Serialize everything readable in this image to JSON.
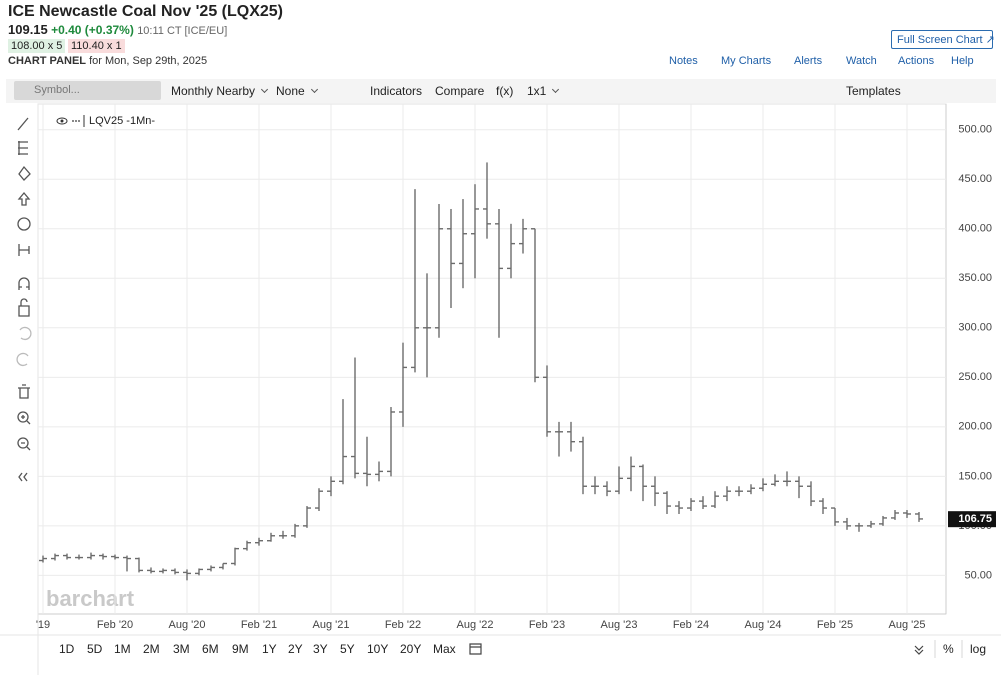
{
  "header": {
    "title": "ICE Newcastle Coal Nov '25 (LQX25)",
    "price": "109.15",
    "change": "+0.40 (+0.37%)",
    "time": "10:11 CT [ICE/EU]",
    "bid": "108.00 x 5",
    "ask": "110.40 x 1",
    "panel_label": "CHART PANEL",
    "panel_date": "for Mon, Sep 29th, 2025",
    "fullscreen": "Full Screen Chart"
  },
  "links": [
    "Notes",
    "My Charts",
    "Alerts",
    "Watch",
    "Actions",
    "Help"
  ],
  "toolbar": {
    "symbol_placeholder": "Symbol...",
    "items": [
      "Monthly Nearby",
      "None",
      "Indicators",
      "Compare",
      "f(x)",
      "1x1"
    ],
    "templates": "Templates"
  },
  "ranges": [
    "1D",
    "5D",
    "1M",
    "2M",
    "3M",
    "6M",
    "9M",
    "1Y",
    "2Y",
    "3Y",
    "5Y",
    "10Y",
    "20Y",
    "Max"
  ],
  "scale_options": [
    "%",
    "log"
  ],
  "watermark": "barchart",
  "chart_data": {
    "type": "ohlc",
    "categories": [
      "'19",
      null,
      null,
      null,
      null,
      null,
      "Feb '20",
      null,
      null,
      null,
      null,
      null,
      "Aug '20",
      null,
      null,
      null,
      null,
      null,
      "Feb '21",
      null,
      null,
      null,
      null,
      null,
      "Aug '21",
      null,
      null,
      null,
      null,
      null,
      "Feb '22",
      null,
      null,
      null,
      null,
      null,
      "Aug '22",
      null,
      null,
      null,
      null,
      null,
      "Feb '23",
      null,
      null,
      null,
      null,
      null,
      "Aug '23",
      null,
      null,
      null,
      null,
      null,
      "Feb '24",
      null,
      null,
      null,
      null,
      null,
      "Aug '24",
      null,
      null,
      null,
      null,
      null,
      "Feb '25",
      null,
      null,
      null,
      null,
      null,
      "Aug '25",
      null
    ],
    "series": [
      {
        "name": "LQV25 -1Mn-",
        "color": "#6b6b6b",
        "open": [
          65,
          67,
          70,
          68,
          68,
          70,
          69,
          68,
          67,
          55,
          54,
          55,
          53,
          52,
          56,
          58,
          62,
          77,
          83,
          85,
          90,
          90,
          100,
          118,
          135,
          145,
          170,
          153,
          152,
          155,
          215,
          260,
          300,
          300,
          400,
          365,
          395,
          420,
          405,
          360,
          385,
          400,
          250,
          195,
          195,
          185,
          140,
          140,
          135,
          148,
          160,
          140,
          133,
          120,
          118,
          125,
          120,
          130,
          135,
          135,
          138,
          142,
          145,
          145,
          140,
          125,
          118,
          104,
          100,
          100,
          102,
          108,
          113,
          112
        ],
        "high": [
          70,
          72,
          72,
          71,
          73,
          72,
          71,
          70,
          68,
          58,
          57,
          57,
          56,
          57,
          60,
          62,
          78,
          85,
          88,
          93,
          95,
          102,
          120,
          138,
          150,
          228,
          270,
          190,
          165,
          220,
          285,
          440,
          355,
          425,
          420,
          430,
          445,
          467,
          420,
          405,
          410,
          400,
          262,
          205,
          205,
          190,
          150,
          145,
          160,
          170,
          162,
          150,
          135,
          125,
          128,
          130,
          135,
          140,
          140,
          142,
          148,
          152,
          155,
          150,
          145,
          128,
          118,
          108,
          103,
          105,
          110,
          116,
          116,
          114
        ],
        "low": [
          63,
          65,
          66,
          66,
          66,
          66,
          66,
          54,
          53,
          52,
          52,
          51,
          45,
          50,
          54,
          56,
          60,
          75,
          80,
          84,
          87,
          88,
          98,
          115,
          130,
          142,
          148,
          140,
          145,
          150,
          200,
          255,
          250,
          290,
          320,
          340,
          350,
          390,
          290,
          350,
          375,
          245,
          190,
          170,
          175,
          132,
          132,
          130,
          132,
          135,
          125,
          120,
          112,
          112,
          115,
          117,
          118,
          125,
          130,
          132,
          135,
          140,
          140,
          128,
          120,
          112,
          100,
          96,
          94,
          98,
          100,
          106,
          108,
          104
        ],
        "close": [
          67,
          70,
          68,
          68,
          70,
          69,
          68,
          67,
          55,
          54,
          55,
          53,
          52,
          56,
          58,
          62,
          77,
          83,
          85,
          90,
          90,
          100,
          118,
          135,
          145,
          170,
          153,
          152,
          155,
          215,
          260,
          300,
          300,
          400,
          365,
          395,
          420,
          405,
          360,
          385,
          400,
          250,
          195,
          195,
          185,
          140,
          140,
          135,
          148,
          160,
          140,
          133,
          120,
          118,
          125,
          120,
          130,
          135,
          135,
          138,
          142,
          145,
          145,
          140,
          125,
          118,
          104,
          100,
          100,
          102,
          108,
          113,
          112,
          107
        ]
      }
    ],
    "ylim": [
      11,
      526
    ],
    "yticks": [
      {
        "value": 50,
        "label": "50.00"
      },
      {
        "value": 100,
        "label": "100.00"
      },
      {
        "value": 150,
        "label": "150.00"
      },
      {
        "value": 200,
        "label": "200.00"
      },
      {
        "value": 250,
        "label": "250.00"
      },
      {
        "value": 300,
        "label": "300.00"
      },
      {
        "value": 350,
        "label": "350.00"
      },
      {
        "value": 400,
        "label": "400.00"
      },
      {
        "value": 450,
        "label": "450.00"
      },
      {
        "value": 500,
        "label": "500.00"
      }
    ],
    "last_price": 106.75,
    "grid": true
  }
}
